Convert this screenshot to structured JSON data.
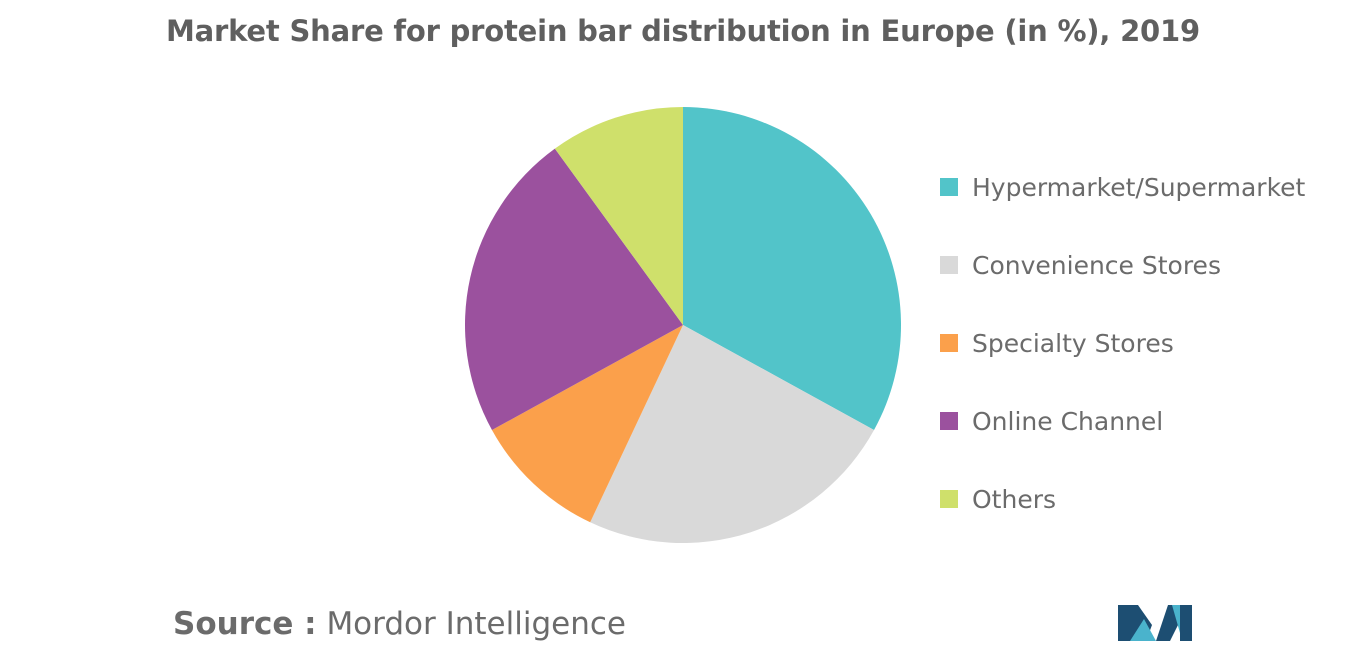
{
  "chart_data": {
    "type": "pie",
    "title": "Market Share for protein bar distribution in Europe (in %), 2019",
    "categories": [
      "Hypermarket/Supermarket",
      "Convenience Stores",
      "Specialty Stores",
      "Online Channel",
      "Others"
    ],
    "values": [
      33,
      24,
      10,
      23,
      10
    ],
    "colors": [
      "#52c4c9",
      "#d9d9d9",
      "#fba04b",
      "#9b519e",
      "#cfe06b"
    ],
    "legend_position": "right",
    "start_angle": "12 o'clock",
    "direction": "clockwise"
  },
  "source": {
    "prefix": "Source :",
    "name": "Mordor Intelligence"
  },
  "logo": {
    "icon": "mordor-intelligence-logo",
    "colors": [
      "#1d4e72",
      "#4ab3cc"
    ]
  }
}
